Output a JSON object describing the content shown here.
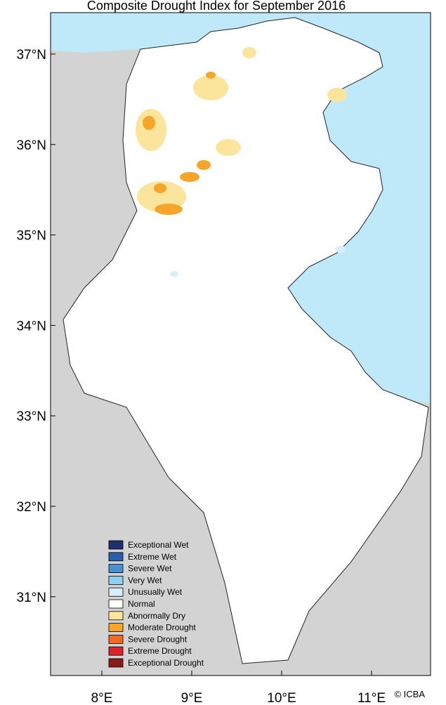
{
  "map": {
    "title": "Composite Drought Index for September 2016",
    "lat_ticks": [
      {
        "value": 37,
        "label": "37°N"
      },
      {
        "value": 36,
        "label": "36°N"
      },
      {
        "value": 35,
        "label": "35°N"
      },
      {
        "value": 34,
        "label": "34°N"
      },
      {
        "value": 33,
        "label": "33°N"
      },
      {
        "value": 32,
        "label": "32°N"
      },
      {
        "value": 31,
        "label": "31°N"
      }
    ],
    "lon_ticks": [
      {
        "value": 8,
        "label": "8°E"
      },
      {
        "value": 9,
        "label": "9°E"
      },
      {
        "value": 10,
        "label": "10°E"
      },
      {
        "value": 11,
        "label": "11°E"
      }
    ],
    "legend": [
      {
        "label": "Exceptional Wet",
        "color": "#1f2f6b"
      },
      {
        "label": "Extreme Wet",
        "color": "#2a5db0"
      },
      {
        "label": "Severe Wet",
        "color": "#4a90d0"
      },
      {
        "label": "Very Wet",
        "color": "#8fd0f0"
      },
      {
        "label": "Unusually Wet",
        "color": "#d7effa"
      },
      {
        "label": "Normal",
        "color": "#ffffff"
      },
      {
        "label": "Abnormally Dry",
        "color": "#fbe49b"
      },
      {
        "label": "Moderate Drought",
        "color": "#f4a52a"
      },
      {
        "label": "Severe Drought",
        "color": "#f06a25"
      },
      {
        "label": "Extreme Drought",
        "color": "#d9242a"
      },
      {
        "label": "Exceptional Drought",
        "color": "#8b1a1a"
      }
    ],
    "credit": "© ICBA"
  }
}
